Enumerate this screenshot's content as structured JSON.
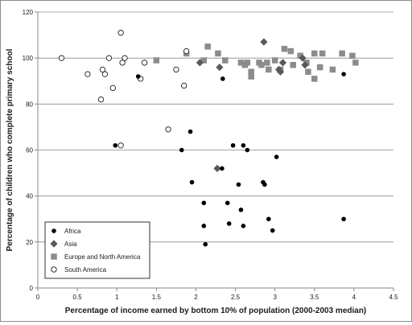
{
  "chart_data": {
    "type": "scatter",
    "title": "",
    "xlabel": "Percentage of income earned by bottom 10% of population (2000-2003 median)",
    "ylabel": "Percentage of children who complete primary school",
    "xlim": [
      0,
      4.5
    ],
    "ylim": [
      0,
      120
    ],
    "xticks": [
      0,
      0.5,
      1,
      1.5,
      2,
      2.5,
      3,
      3.5,
      4,
      4.5
    ],
    "yticks": [
      0,
      20,
      40,
      60,
      80,
      100,
      120
    ],
    "xtick_labels": [
      "0",
      "0.5",
      "1",
      "1.5",
      "2",
      "2.5",
      "3",
      "3.5",
      "4",
      "4.5"
    ],
    "ytick_labels": [
      "0",
      "20",
      "40",
      "60",
      "80",
      "100",
      "120"
    ],
    "grid": "horizontal",
    "legend_position": "bottom-left",
    "series": [
      {
        "name": "Africa",
        "marker": "circle-filled",
        "color": "#000000",
        "points": [
          [
            0.98,
            62
          ],
          [
            1.27,
            92
          ],
          [
            1.82,
            60
          ],
          [
            1.93,
            68
          ],
          [
            1.95,
            46
          ],
          [
            2.1,
            37
          ],
          [
            2.1,
            27
          ],
          [
            2.12,
            19
          ],
          [
            2.34,
            91
          ],
          [
            2.33,
            52
          ],
          [
            2.4,
            37
          ],
          [
            2.42,
            28
          ],
          [
            2.47,
            62
          ],
          [
            2.54,
            45
          ],
          [
            2.57,
            34
          ],
          [
            2.6,
            62
          ],
          [
            2.6,
            27
          ],
          [
            2.65,
            60
          ],
          [
            2.85,
            46
          ],
          [
            2.87,
            45
          ],
          [
            2.92,
            30
          ],
          [
            2.97,
            25
          ],
          [
            3.02,
            57
          ],
          [
            3.87,
            93
          ],
          [
            3.87,
            30
          ]
        ]
      },
      {
        "name": "Asia",
        "marker": "diamond",
        "color": "#595959",
        "points": [
          [
            2.05,
            98
          ],
          [
            2.27,
            52
          ],
          [
            2.3,
            96
          ],
          [
            2.86,
            107
          ],
          [
            3.05,
            95
          ],
          [
            3.07,
            94
          ],
          [
            3.1,
            98
          ],
          [
            3.35,
            100
          ],
          [
            3.38,
            97
          ]
        ]
      },
      {
        "name": "Europe and North America",
        "marker": "square",
        "color": "#8c8c8c",
        "points": [
          [
            1.5,
            99
          ],
          [
            1.88,
            102
          ],
          [
            2.1,
            99
          ],
          [
            2.15,
            105
          ],
          [
            2.28,
            102
          ],
          [
            2.37,
            99
          ],
          [
            2.57,
            98
          ],
          [
            2.62,
            97
          ],
          [
            2.65,
            98
          ],
          [
            2.7,
            94
          ],
          [
            2.7,
            92
          ],
          [
            2.8,
            98
          ],
          [
            2.83,
            97
          ],
          [
            2.9,
            98
          ],
          [
            2.92,
            95
          ],
          [
            3.0,
            99
          ],
          [
            3.07,
            95
          ],
          [
            3.12,
            104
          ],
          [
            3.2,
            103
          ],
          [
            3.23,
            97
          ],
          [
            3.32,
            101
          ],
          [
            3.4,
            98
          ],
          [
            3.42,
            94
          ],
          [
            3.5,
            91
          ],
          [
            3.5,
            102
          ],
          [
            3.57,
            96
          ],
          [
            3.6,
            102
          ],
          [
            3.73,
            95
          ],
          [
            3.85,
            102
          ],
          [
            3.98,
            101
          ],
          [
            4.02,
            98
          ]
        ]
      },
      {
        "name": "South America",
        "marker": "circle-open",
        "color": "#000000",
        "points": [
          [
            0.3,
            100
          ],
          [
            0.63,
            93
          ],
          [
            0.8,
            82
          ],
          [
            0.82,
            95
          ],
          [
            0.85,
            93
          ],
          [
            0.9,
            100
          ],
          [
            0.95,
            87
          ],
          [
            1.05,
            111
          ],
          [
            1.07,
            98
          ],
          [
            1.1,
            100
          ],
          [
            1.3,
            91
          ],
          [
            1.35,
            98
          ],
          [
            1.65,
            69
          ],
          [
            1.75,
            95
          ],
          [
            1.85,
            88
          ],
          [
            1.88,
            103
          ],
          [
            1.05,
            62
          ]
        ]
      }
    ]
  }
}
